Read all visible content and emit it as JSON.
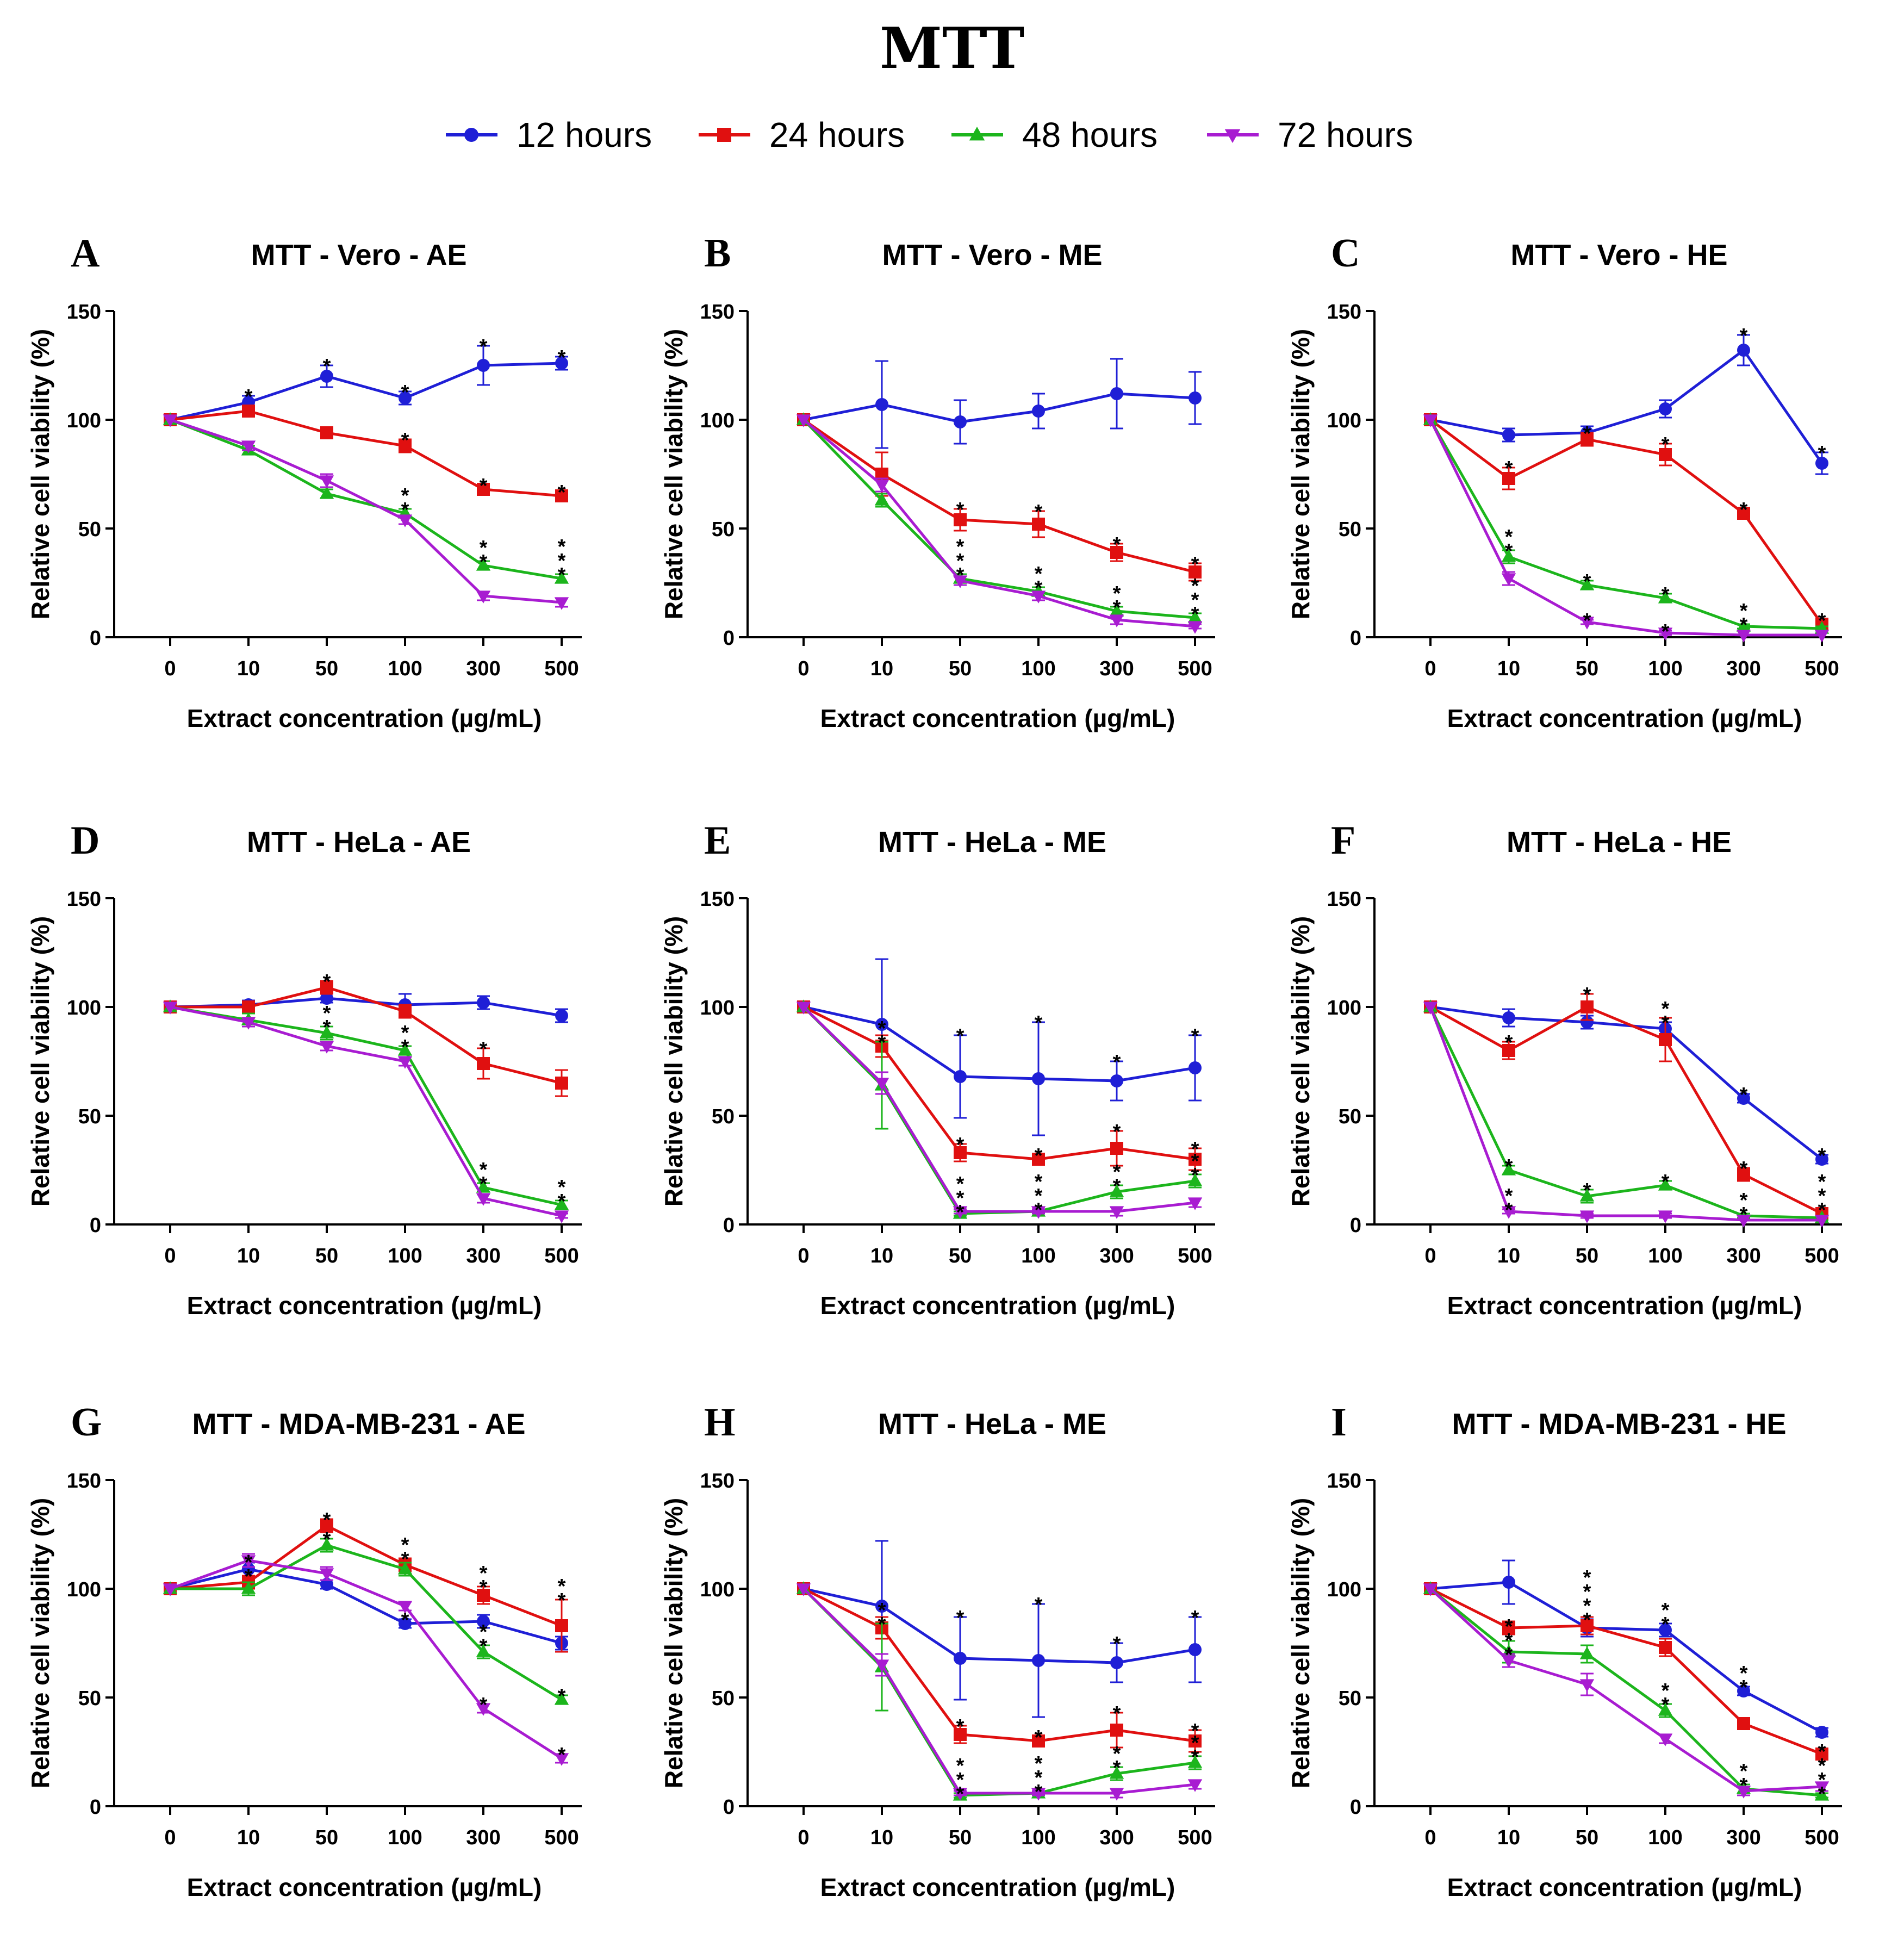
{
  "figure_title": "MTT",
  "legend": [
    {
      "label": "12 hours",
      "color": "#1f1fd6",
      "marker": "circle"
    },
    {
      "label": "24 hours",
      "color": "#e01010",
      "marker": "square"
    },
    {
      "label": "48 hours",
      "color": "#1cb51c",
      "marker": "triangle-up"
    },
    {
      "label": "72 hours",
      "color": "#a81cd1",
      "marker": "triangle-down"
    }
  ],
  "chart_data": [
    {
      "type": "line",
      "panel": "A",
      "title": "MTT - Vero - AE",
      "categories": [
        "0",
        "10",
        "50",
        "100",
        "300",
        "500"
      ],
      "xlabel": "Extract concentration (µg/mL)",
      "ylabel": "Relative cell viability (%)",
      "ylim": [
        0,
        150
      ],
      "yticks": [
        0,
        50,
        100,
        150
      ],
      "series": [
        {
          "name": "12 hours",
          "values": [
            100,
            108,
            120,
            110,
            125,
            126
          ],
          "errors": [
            0,
            3,
            5,
            3,
            9,
            3
          ],
          "stars": [
            0,
            1,
            1,
            1,
            1,
            1
          ]
        },
        {
          "name": "24 hours",
          "values": [
            100,
            104,
            94,
            88,
            68,
            65
          ],
          "errors": [
            0,
            2,
            2,
            3,
            2,
            2
          ],
          "stars": [
            0,
            0,
            0,
            1,
            1,
            1
          ]
        },
        {
          "name": "48 hours",
          "values": [
            100,
            86,
            66,
            57,
            33,
            27
          ],
          "errors": [
            0,
            2,
            2,
            2,
            2,
            2
          ],
          "stars": [
            0,
            0,
            0,
            2,
            2,
            3
          ]
        },
        {
          "name": "72 hours",
          "values": [
            100,
            88,
            72,
            54,
            19,
            16
          ],
          "errors": [
            0,
            2,
            3,
            2,
            2,
            2
          ],
          "stars": [
            0,
            0,
            0,
            0,
            0,
            0
          ]
        }
      ]
    },
    {
      "type": "line",
      "panel": "B",
      "title": "MTT - Vero - ME",
      "categories": [
        "0",
        "10",
        "50",
        "100",
        "300",
        "500"
      ],
      "xlabel": "Extract concentration (µg/mL)",
      "ylabel": "Relative cell viability (%)",
      "ylim": [
        0,
        150
      ],
      "yticks": [
        0,
        50,
        100,
        150
      ],
      "series": [
        {
          "name": "12 hours",
          "values": [
            100,
            107,
            99,
            104,
            112,
            110
          ],
          "errors": [
            0,
            20,
            10,
            8,
            16,
            12
          ],
          "stars": [
            0,
            0,
            0,
            0,
            0,
            0
          ]
        },
        {
          "name": "24 hours",
          "values": [
            100,
            75,
            54,
            52,
            39,
            30
          ],
          "errors": [
            0,
            10,
            5,
            6,
            4,
            4
          ],
          "stars": [
            0,
            0,
            1,
            1,
            1,
            1
          ]
        },
        {
          "name": "48 hours",
          "values": [
            100,
            63,
            27,
            21,
            12,
            9
          ],
          "errors": [
            0,
            3,
            2,
            2,
            2,
            2
          ],
          "stars": [
            0,
            0,
            3,
            2,
            2,
            3
          ]
        },
        {
          "name": "72 hours",
          "values": [
            100,
            70,
            26,
            19,
            8,
            5
          ],
          "errors": [
            0,
            3,
            2,
            2,
            2,
            1
          ],
          "stars": [
            0,
            0,
            0,
            0,
            0,
            0
          ]
        }
      ]
    },
    {
      "type": "line",
      "panel": "C",
      "title": "MTT - Vero - HE",
      "categories": [
        "0",
        "10",
        "50",
        "100",
        "300",
        "500"
      ],
      "xlabel": "Extract concentration (µg/mL)",
      "ylabel": "Relative cell viability (%)",
      "ylim": [
        0,
        150
      ],
      "yticks": [
        0,
        50,
        100,
        150
      ],
      "series": [
        {
          "name": "12 hours",
          "values": [
            100,
            93,
            94,
            105,
            132,
            80
          ],
          "errors": [
            0,
            3,
            3,
            4,
            7,
            5
          ],
          "stars": [
            0,
            0,
            0,
            0,
            1,
            1
          ]
        },
        {
          "name": "24 hours",
          "values": [
            100,
            73,
            91,
            84,
            57,
            6
          ],
          "errors": [
            0,
            5,
            3,
            5,
            2,
            2
          ],
          "stars": [
            0,
            1,
            1,
            1,
            1,
            1
          ]
        },
        {
          "name": "48 hours",
          "values": [
            100,
            37,
            24,
            18,
            5,
            4
          ],
          "errors": [
            0,
            3,
            2,
            2,
            1,
            1
          ],
          "stars": [
            0,
            2,
            1,
            1,
            2,
            0
          ]
        },
        {
          "name": "72 hours",
          "values": [
            100,
            27,
            7,
            2,
            1,
            1
          ],
          "errors": [
            0,
            3,
            1,
            1,
            0,
            0
          ],
          "stars": [
            0,
            0,
            1,
            1,
            0,
            0
          ]
        }
      ]
    },
    {
      "type": "line",
      "panel": "D",
      "title": "MTT - HeLa - AE",
      "categories": [
        "0",
        "10",
        "50",
        "100",
        "300",
        "500"
      ],
      "xlabel": "Extract concentration (µg/mL)",
      "ylabel": "Relative cell viability (%)",
      "ylim": [
        0,
        150
      ],
      "yticks": [
        0,
        50,
        100,
        150
      ],
      "series": [
        {
          "name": "12 hours",
          "values": [
            100,
            101,
            104,
            101,
            102,
            96
          ],
          "errors": [
            0,
            2,
            2,
            5,
            3,
            3
          ],
          "stars": [
            0,
            0,
            0,
            0,
            0,
            0
          ]
        },
        {
          "name": "24 hours",
          "values": [
            100,
            100,
            109,
            98,
            74,
            65
          ],
          "errors": [
            0,
            2,
            3,
            3,
            7,
            6
          ],
          "stars": [
            0,
            0,
            1,
            0,
            1,
            0
          ]
        },
        {
          "name": "48 hours",
          "values": [
            100,
            94,
            88,
            80,
            17,
            9
          ],
          "errors": [
            0,
            3,
            3,
            2,
            2,
            2
          ],
          "stars": [
            0,
            0,
            2,
            2,
            2,
            2
          ]
        },
        {
          "name": "72 hours",
          "values": [
            100,
            93,
            82,
            75,
            12,
            4
          ],
          "errors": [
            0,
            2,
            2,
            2,
            2,
            1
          ],
          "stars": [
            0,
            0,
            0,
            0,
            0,
            0
          ]
        }
      ]
    },
    {
      "type": "line",
      "panel": "E",
      "title": "MTT - HeLa - ME",
      "categories": [
        "0",
        "10",
        "50",
        "100",
        "300",
        "500"
      ],
      "xlabel": "Extract concentration (µg/mL)",
      "ylabel": "Relative cell viability (%)",
      "ylim": [
        0,
        150
      ],
      "yticks": [
        0,
        50,
        100,
        150
      ],
      "series": [
        {
          "name": "12 hours",
          "values": [
            100,
            92,
            68,
            67,
            66,
            72
          ],
          "errors": [
            0,
            30,
            19,
            26,
            9,
            15
          ],
          "stars": [
            0,
            0,
            1,
            1,
            1,
            1
          ]
        },
        {
          "name": "24 hours",
          "values": [
            100,
            82,
            33,
            30,
            35,
            30
          ],
          "errors": [
            0,
            5,
            4,
            2,
            8,
            5
          ],
          "stars": [
            0,
            0,
            1,
            1,
            1,
            1
          ]
        },
        {
          "name": "48 hours",
          "values": [
            100,
            64,
            5,
            6,
            15,
            20
          ],
          "errors": [
            0,
            20,
            1,
            1,
            3,
            3
          ],
          "stars": [
            0,
            2,
            3,
            3,
            2,
            2
          ]
        },
        {
          "name": "72 hours",
          "values": [
            100,
            65,
            6,
            6,
            6,
            10
          ],
          "errors": [
            0,
            5,
            1,
            1,
            2,
            2
          ],
          "stars": [
            0,
            0,
            0,
            0,
            0,
            0
          ]
        }
      ]
    },
    {
      "type": "line",
      "panel": "F",
      "title": "MTT - HeLa - HE",
      "categories": [
        "0",
        "10",
        "50",
        "100",
        "300",
        "500"
      ],
      "xlabel": "Extract concentration (µg/mL)",
      "ylabel": "Relative cell viability (%)",
      "ylim": [
        0,
        150
      ],
      "yticks": [
        0,
        50,
        100,
        150
      ],
      "series": [
        {
          "name": "12 hours",
          "values": [
            100,
            95,
            93,
            90,
            58,
            30
          ],
          "errors": [
            0,
            4,
            3,
            3,
            2,
            2
          ],
          "stars": [
            0,
            0,
            0,
            2,
            1,
            1
          ]
        },
        {
          "name": "24 hours",
          "values": [
            100,
            80,
            100,
            85,
            23,
            5
          ],
          "errors": [
            0,
            4,
            6,
            10,
            3,
            2
          ],
          "stars": [
            0,
            1,
            1,
            0,
            1,
            3
          ]
        },
        {
          "name": "48 hours",
          "values": [
            100,
            25,
            13,
            18,
            4,
            3
          ],
          "errors": [
            0,
            2,
            3,
            2,
            1,
            1
          ],
          "stars": [
            0,
            1,
            1,
            1,
            2,
            0
          ]
        },
        {
          "name": "72 hours",
          "values": [
            100,
            6,
            4,
            4,
            2,
            2
          ],
          "errors": [
            0,
            1,
            1,
            1,
            0,
            0
          ],
          "stars": [
            0,
            2,
            0,
            0,
            0,
            0
          ]
        }
      ]
    },
    {
      "type": "line",
      "panel": "G",
      "title": "MTT - MDA-MB-231 - AE",
      "categories": [
        "0",
        "10",
        "50",
        "100",
        "300",
        "500"
      ],
      "xlabel": "Extract concentration (µg/mL)",
      "ylabel": "Relative cell viability (%)",
      "ylim": [
        0,
        150
      ],
      "yticks": [
        0,
        50,
        100,
        150
      ],
      "series": [
        {
          "name": "12 hours",
          "values": [
            100,
            109,
            102,
            84,
            85,
            75
          ],
          "errors": [
            0,
            3,
            2,
            2,
            3,
            3
          ],
          "stars": [
            0,
            0,
            0,
            1,
            0,
            0
          ]
        },
        {
          "name": "24 hours",
          "values": [
            100,
            103,
            129,
            111,
            97,
            83
          ],
          "errors": [
            0,
            3,
            3,
            3,
            4,
            12
          ],
          "stars": [
            0,
            2,
            1,
            2,
            2,
            2
          ]
        },
        {
          "name": "48 hours",
          "values": [
            100,
            100,
            120,
            109,
            71,
            49
          ],
          "errors": [
            0,
            3,
            3,
            3,
            3,
            2
          ],
          "stars": [
            0,
            0,
            1,
            0,
            2,
            1
          ]
        },
        {
          "name": "72 hours",
          "values": [
            100,
            113,
            107,
            92,
            45,
            22
          ],
          "errors": [
            0,
            3,
            3,
            2,
            2,
            2
          ],
          "stars": [
            0,
            0,
            0,
            0,
            1,
            1
          ]
        }
      ]
    },
    {
      "type": "line",
      "panel": "H",
      "title": "MTT - HeLa - ME",
      "categories": [
        "0",
        "10",
        "50",
        "100",
        "300",
        "500"
      ],
      "xlabel": "Extract concentration (µg/mL)",
      "ylabel": "Relative cell viability (%)",
      "ylim": [
        0,
        150
      ],
      "yticks": [
        0,
        50,
        100,
        150
      ],
      "series": [
        {
          "name": "12 hours",
          "values": [
            100,
            92,
            68,
            67,
            66,
            72
          ],
          "errors": [
            0,
            30,
            19,
            26,
            9,
            15
          ],
          "stars": [
            0,
            0,
            1,
            1,
            1,
            1
          ]
        },
        {
          "name": "24 hours",
          "values": [
            100,
            82,
            33,
            30,
            35,
            30
          ],
          "errors": [
            0,
            5,
            4,
            2,
            8,
            5
          ],
          "stars": [
            0,
            0,
            1,
            1,
            1,
            1
          ]
        },
        {
          "name": "48 hours",
          "values": [
            100,
            64,
            5,
            6,
            15,
            20
          ],
          "errors": [
            0,
            20,
            1,
            1,
            3,
            3
          ],
          "stars": [
            0,
            2,
            3,
            3,
            2,
            2
          ]
        },
        {
          "name": "72 hours",
          "values": [
            100,
            65,
            6,
            6,
            6,
            10
          ],
          "errors": [
            0,
            5,
            1,
            1,
            2,
            2
          ],
          "stars": [
            0,
            0,
            0,
            0,
            0,
            0
          ]
        }
      ]
    },
    {
      "type": "line",
      "panel": "I",
      "title": "MTT - MDA-MB-231 - HE",
      "categories": [
        "0",
        "10",
        "50",
        "100",
        "300",
        "500"
      ],
      "xlabel": "Extract concentration (µg/mL)",
      "ylabel": "Relative cell viability (%)",
      "ylim": [
        0,
        150
      ],
      "yticks": [
        0,
        50,
        100,
        150
      ],
      "series": [
        {
          "name": "12 hours",
          "values": [
            100,
            103,
            82,
            81,
            53,
            34
          ],
          "errors": [
            0,
            10,
            4,
            3,
            2,
            2
          ],
          "stars": [
            0,
            0,
            4,
            2,
            2,
            0
          ]
        },
        {
          "name": "24 hours",
          "values": [
            100,
            82,
            83,
            73,
            38,
            24
          ],
          "errors": [
            0,
            3,
            4,
            4,
            2,
            2
          ],
          "stars": [
            0,
            0,
            0,
            0,
            0,
            0
          ]
        },
        {
          "name": "48 hours",
          "values": [
            100,
            71,
            70,
            44,
            8,
            5
          ],
          "errors": [
            0,
            5,
            4,
            3,
            2,
            1
          ],
          "stars": [
            0,
            0,
            0,
            2,
            2,
            4
          ]
        },
        {
          "name": "72 hours",
          "values": [
            100,
            67,
            56,
            31,
            7,
            9
          ],
          "errors": [
            0,
            3,
            5,
            2,
            2,
            2
          ],
          "stars": [
            0,
            3,
            0,
            0,
            0,
            0
          ]
        }
      ]
    }
  ]
}
